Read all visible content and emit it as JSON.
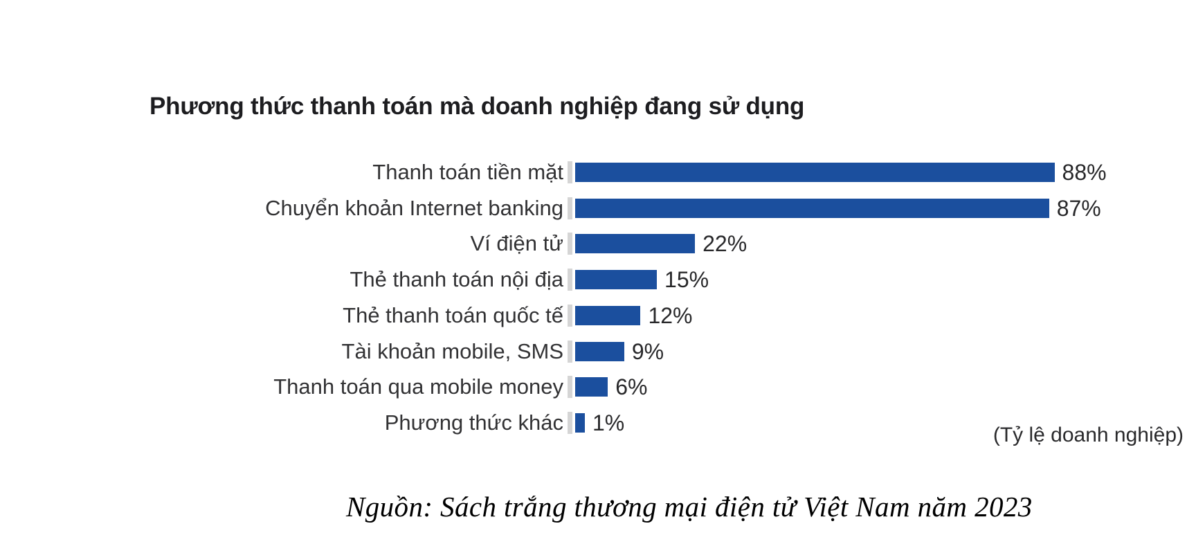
{
  "chart_data": {
    "type": "bar",
    "orientation": "horizontal",
    "title": "Phương thức thanh toán mà doanh nghiệp đang sử dụng",
    "categories": [
      "Thanh toán tiền mặt",
      "Chuyển khoản Internet banking",
      "Ví điện tử",
      "Thẻ thanh toán nội địa",
      "Thẻ thanh toán quốc tế",
      "Tài khoản mobile, SMS",
      "Thanh toán qua mobile money",
      "Phương thức khác"
    ],
    "values": [
      88,
      87,
      22,
      15,
      12,
      9,
      6,
      1
    ],
    "value_labels": [
      "88%",
      "87%",
      "22%",
      "15%",
      "12%",
      "9%",
      "6%",
      "1%"
    ],
    "unit_note": "(Tỷ lệ doanh nghiệp)",
    "xlabel": "",
    "ylabel": "",
    "xlim": [
      0,
      100
    ],
    "grid": false,
    "legend": false,
    "bar_color": "#1b4f9e",
    "axis_tick_color": "#d5d5d5",
    "data_label_suffix": "%"
  },
  "source_note": "Nguồn: Sách trắng thương mại điện tử Việt Nam năm 2023"
}
